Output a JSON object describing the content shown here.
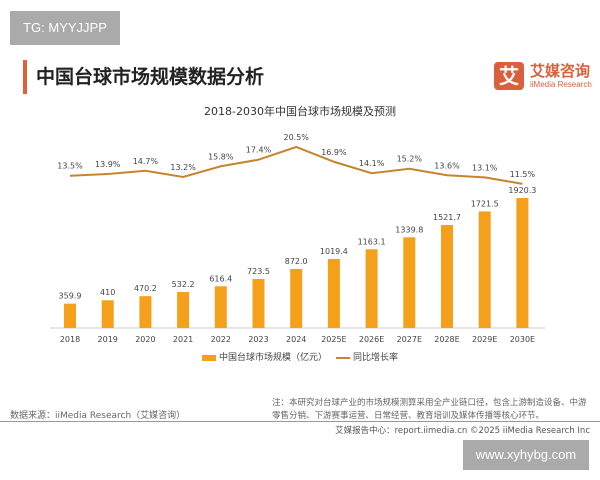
{
  "watermark_top": "TG: MYYJJPP",
  "watermark_bottom": "www.xyhybg.com",
  "page_title": "中国台球市场规模数据分析",
  "logo": {
    "mark": "艾",
    "cn": "艾媒咨询",
    "en": "iiMedia Research"
  },
  "source": "数据来源：iiMedia Research（艾媒咨询）",
  "note": "注：本研究对台球产业的市场规模测算采用全产业链口径，包含上游制造设备、中游零售分销、下游赛事运营、日常经营、教育培训及媒体传播等核心环节。",
  "footer": "艾媒报告中心：report.iimedia.cn    ©2025  iiMedia Research  Inc",
  "colors": {
    "bar": "#f5a01a",
    "line": "#c8832e",
    "accent": "#e0603a"
  },
  "chart_data": {
    "type": "bar+line",
    "title": "2018-2030年中国台球市场规模及预测",
    "categories": [
      "2018",
      "2019",
      "2020",
      "2021",
      "2022",
      "2023",
      "2024",
      "2025E",
      "2026E",
      "2027E",
      "2028E",
      "2029E",
      "2030E"
    ],
    "series": [
      {
        "name": "中国台球市场规模（亿元）",
        "type": "bar",
        "values": [
          359.9,
          410,
          470.2,
          532.2,
          616.4,
          723.5,
          872.0,
          1019.4,
          1163.1,
          1339.8,
          1521.7,
          1721.5,
          1920.3
        ],
        "labels": [
          "359.9",
          "410",
          "470.2",
          "532.2",
          "616.4",
          "723.5",
          "872.0",
          "1019.4",
          "1163.1",
          "1339.8",
          "1521.7",
          "1721.5",
          "1920.3"
        ]
      },
      {
        "name": "同比增长率",
        "type": "line",
        "values": [
          13.5,
          13.9,
          14.7,
          13.2,
          15.8,
          17.4,
          20.5,
          16.9,
          14.1,
          15.2,
          13.6,
          13.1,
          11.5
        ],
        "labels": [
          "13.5%",
          "13.9%",
          "14.7%",
          "13.2%",
          "15.8%",
          "17.4%",
          "20.5%",
          "16.9%",
          "14.1%",
          "15.2%",
          "13.6%",
          "13.1%",
          "11.5%"
        ]
      }
    ],
    "legend": "bottom",
    "grid": false
  }
}
